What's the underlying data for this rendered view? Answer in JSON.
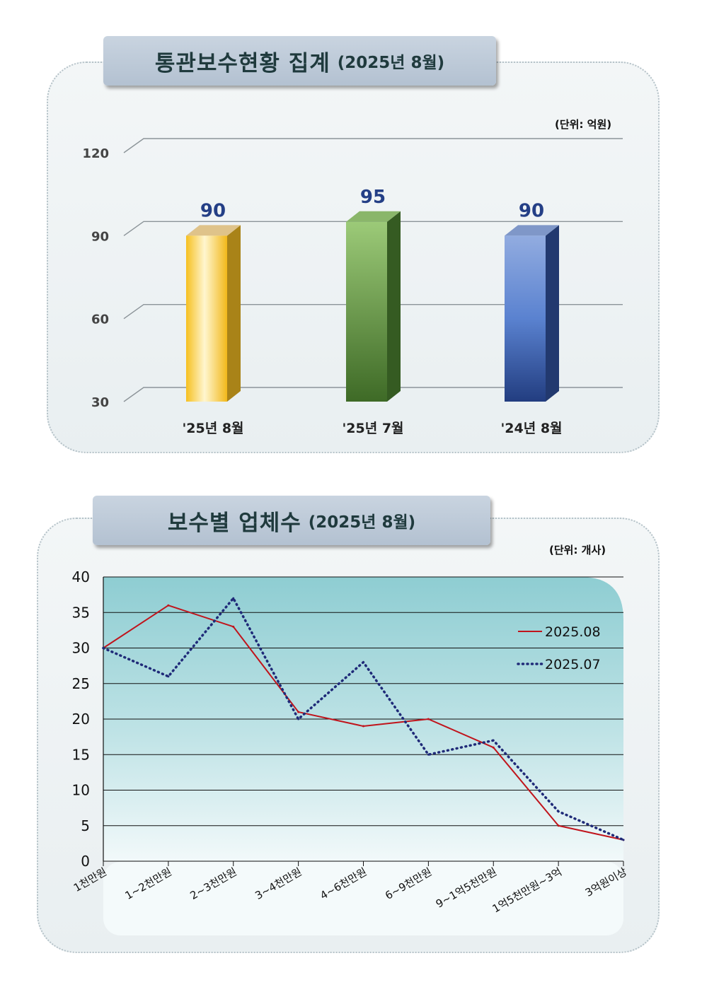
{
  "chart_data": [
    {
      "type": "bar",
      "title": "통관보수현황 집계",
      "subtitle": "(2025년 8월)",
      "unit": "(단위: 억원)",
      "categories": [
        "'25년 8월",
        "'25년 7월",
        "'24년 8월"
      ],
      "values": [
        90,
        95,
        90
      ],
      "ylim": [
        30,
        120
      ],
      "yticks": [
        30,
        60,
        90,
        120
      ],
      "grid": true,
      "colors": [
        "#f5c52e",
        "#70a048",
        "#4a72c0"
      ]
    },
    {
      "type": "line",
      "title": "보수별 업체수",
      "subtitle": "(2025년 8월)",
      "unit": "(단위: 개사)",
      "categories": [
        "1천만원",
        "1~2천만원",
        "2~3천만원",
        "3~4천만원",
        "4~6천만원",
        "6~9천만원",
        "9~1억5천만원",
        "1억5천만원~3억",
        "3억원이상"
      ],
      "series": [
        {
          "name": "2025.08",
          "values": [
            30,
            36,
            33,
            21,
            19,
            20,
            16,
            5,
            3
          ],
          "color": "#c0141c",
          "style": "solid"
        },
        {
          "name": "2025.07",
          "values": [
            30,
            26,
            37,
            20,
            28,
            15,
            17,
            7,
            3
          ],
          "color": "#1f2a78",
          "style": "dotted"
        }
      ],
      "ylim": [
        0,
        40
      ],
      "yticks": [
        0,
        5,
        10,
        15,
        20,
        25,
        30,
        35,
        40
      ],
      "grid": true,
      "legend": "right"
    }
  ]
}
